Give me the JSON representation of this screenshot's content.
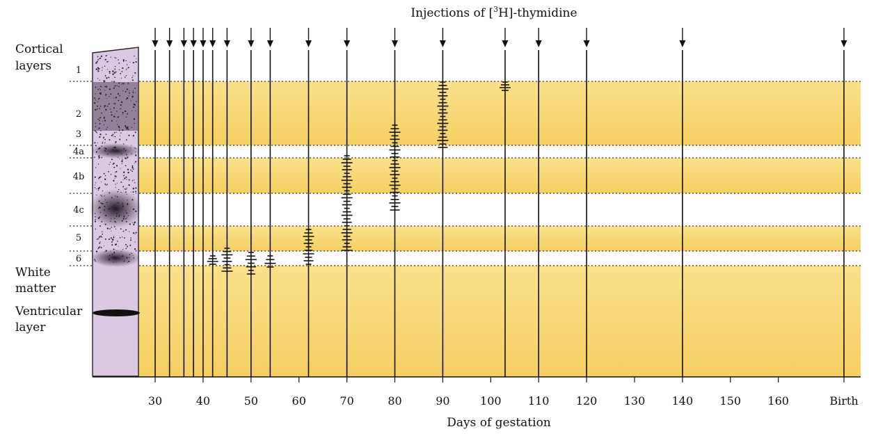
{
  "title_prefix": "Injections of [",
  "title_sup": "3",
  "title_suffix": "H]-thymidine",
  "left_labels": {
    "cortical_line1": "Cortical",
    "cortical_line2": "layers",
    "white_line1": "White",
    "white_line2": "matter",
    "ventricular_line1": "Ventricular",
    "ventricular_line2": "layer"
  },
  "layers": [
    {
      "label": "1",
      "band": "white"
    },
    {
      "label": "2",
      "band": "yellow"
    },
    {
      "label": "3",
      "band": "yellow"
    },
    {
      "label": "4a",
      "band": "white"
    },
    {
      "label": "4b",
      "band": "yellow"
    },
    {
      "label": "4c",
      "band": "white"
    },
    {
      "label": "5",
      "band": "yellow"
    },
    {
      "label": "6",
      "band": "white"
    }
  ],
  "x_axis": {
    "label": "Days of gestation",
    "ticks": [
      "30",
      "40",
      "50",
      "60",
      "70",
      "80",
      "90",
      "100",
      "110",
      "120",
      "130",
      "140",
      "150",
      "160",
      "Birth"
    ],
    "range": [
      27,
      165
    ]
  },
  "injection_days": [
    30,
    33,
    36,
    38,
    40,
    42,
    45,
    50,
    54,
    62,
    70,
    80,
    90,
    103,
    110,
    120,
    140,
    165
  ],
  "labelled_cells": [
    {
      "day": 42,
      "layers": "6"
    },
    {
      "day": 45,
      "layers": "6"
    },
    {
      "day": 50,
      "layers": "6"
    },
    {
      "day": 54,
      "layers": "6"
    },
    {
      "day": 62,
      "layers": "5-6"
    },
    {
      "day": 70,
      "layers": "4c-5"
    },
    {
      "day": 80,
      "layers": "3-4b"
    },
    {
      "day": 90,
      "layers": "2-3"
    },
    {
      "day": 103,
      "layers": "2 (top)"
    }
  ],
  "colors": {
    "yellow_band": "#f7d36a",
    "white_band": "#ffffff",
    "strip": "#d9c6e0",
    "line": "#111111"
  }
}
